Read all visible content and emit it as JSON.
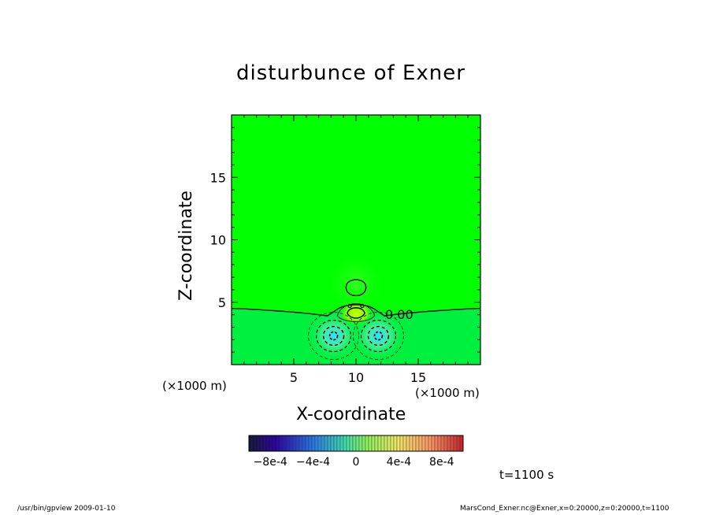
{
  "chart_data": {
    "type": "contour",
    "title": "disturbunce of Exner",
    "xlabel": "X-coordinate",
    "ylabel": "Z-coordinate",
    "x_unit": "(×1000 m)",
    "z_unit": "(×1000 m)",
    "xlim": [
      0,
      20
    ],
    "zlim": [
      0,
      20
    ],
    "x_ticks": [
      "5",
      "10",
      "15"
    ],
    "z_ticks": [
      "5",
      "10",
      "15"
    ],
    "x_tick_values": [
      5,
      10,
      15
    ],
    "z_tick_values": [
      5,
      10,
      15
    ],
    "contour_label": "0.00",
    "colorbar": {
      "tick_labels": [
        "−8e-4",
        "−4e-4",
        "0",
        "4e-4",
        "8e-4"
      ],
      "tick_values": [
        -0.0008,
        -0.0004,
        0,
        0.0004,
        0.0008
      ],
      "range": [
        -0.001,
        0.001
      ]
    },
    "features": [
      {
        "kind": "low",
        "x": 8.2,
        "z": 2.3,
        "value": -0.0003
      },
      {
        "kind": "low",
        "x": 11.8,
        "z": 2.3,
        "value": -0.0003
      },
      {
        "kind": "high",
        "x": 10.0,
        "z": 4.1,
        "value": 0.00015
      },
      {
        "kind": "high",
        "x": 10.0,
        "z": 6.0,
        "value": 3e-05
      }
    ],
    "colors": {
      "background_field": "#00ff00",
      "contour": "#000000"
    }
  },
  "annotations": {
    "time": "t=1100 s",
    "footer_left": "/usr/bin/gpview   2009-01-10",
    "footer_right": "MarsCond_Exner.nc@Exner,x=0:20000,z=0:20000,t=1100"
  }
}
